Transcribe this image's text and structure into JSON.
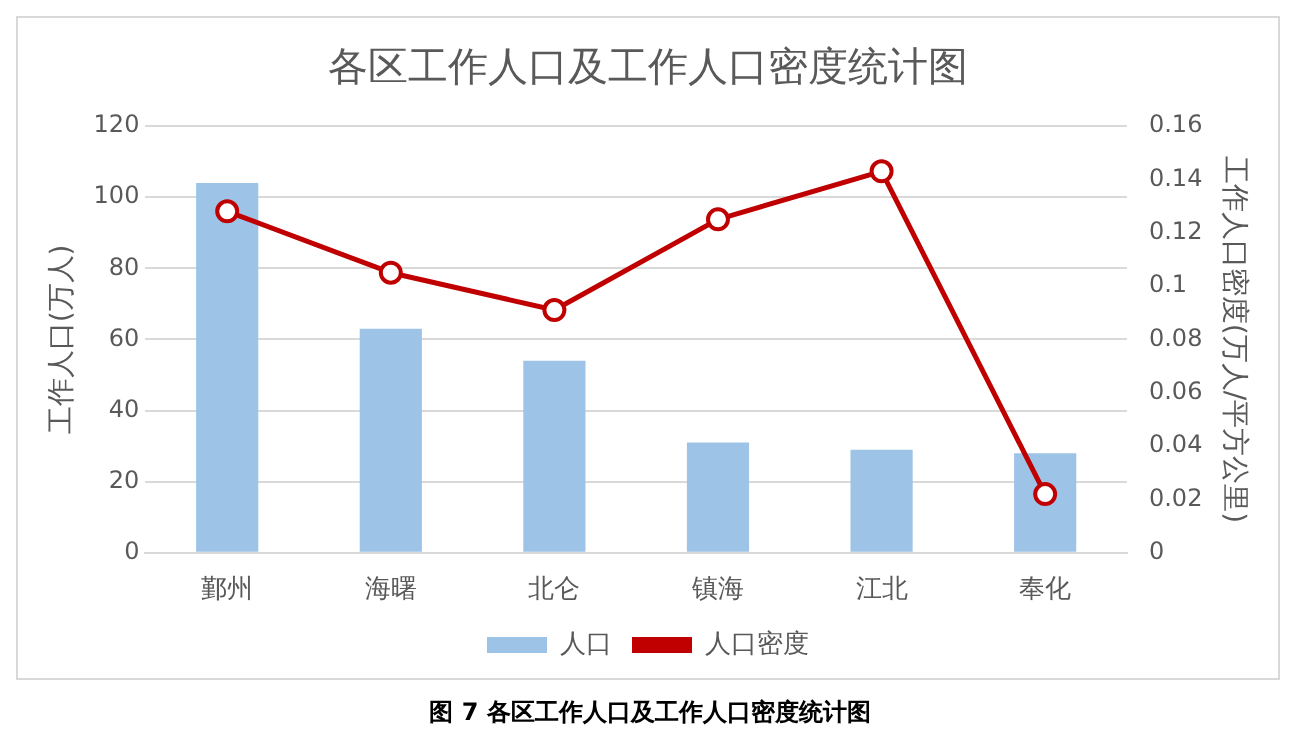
{
  "chart_data": {
    "type": "bar",
    "title": "各区工作人口及工作人口密度统计图",
    "ylabel": "工作人口(万人)",
    "y2label": "工作人口密度(万人/平方公里)",
    "categories": [
      "鄞州",
      "海曙",
      "北仑",
      "镇海",
      "江北",
      "奉化"
    ],
    "series": [
      {
        "name": "人口",
        "color": "#9dc3e6",
        "values": [
          104,
          63,
          54,
          31,
          29,
          28
        ]
      },
      {
        "name": "人口密度",
        "type": "line",
        "axis": "y2",
        "color": "#c00000",
        "marker": "circle",
        "values": [
          0.128,
          0.105,
          0.091,
          0.125,
          0.143,
          0.022
        ]
      }
    ],
    "ylim": [
      0,
      120
    ],
    "yticks": [
      0,
      20,
      40,
      60,
      80,
      100,
      120
    ],
    "y2lim": [
      0,
      0.16
    ],
    "y2ticks": [
      0,
      0.02,
      0.04,
      0.06,
      0.08,
      0.1,
      0.12,
      0.14,
      0.16
    ],
    "grid": "y",
    "legend": "bottom",
    "annotations": [
      "图 7  各区工作人口及工作人口密度统计图"
    ]
  }
}
